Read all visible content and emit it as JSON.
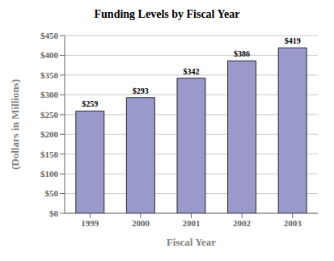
{
  "chart_data": {
    "type": "bar",
    "title": "Funding Levels by Fiscal Year",
    "xlabel": "Fiscal Year",
    "ylabel": "(Dollars in Millions)",
    "categories": [
      "1999",
      "2000",
      "2001",
      "2002",
      "2003"
    ],
    "values": [
      259,
      293,
      342,
      386,
      419
    ],
    "value_labels": [
      "$259",
      "$293",
      "$342",
      "$386",
      "$419"
    ],
    "data_labels": true,
    "color": "#9999cc",
    "ylim": [
      0,
      450
    ],
    "yticks": [
      {
        "value": 0,
        "label": "$0"
      },
      {
        "value": 50,
        "label": "$50"
      },
      {
        "value": 100,
        "label": "$100"
      },
      {
        "value": 150,
        "label": "$150"
      },
      {
        "value": 200,
        "label": "$200"
      },
      {
        "value": 250,
        "label": "$250"
      },
      {
        "value": 300,
        "label": "$300"
      },
      {
        "value": 350,
        "label": "$350"
      },
      {
        "value": 400,
        "label": "$400"
      },
      {
        "value": 450,
        "label": "$450"
      }
    ],
    "grid": true
  }
}
